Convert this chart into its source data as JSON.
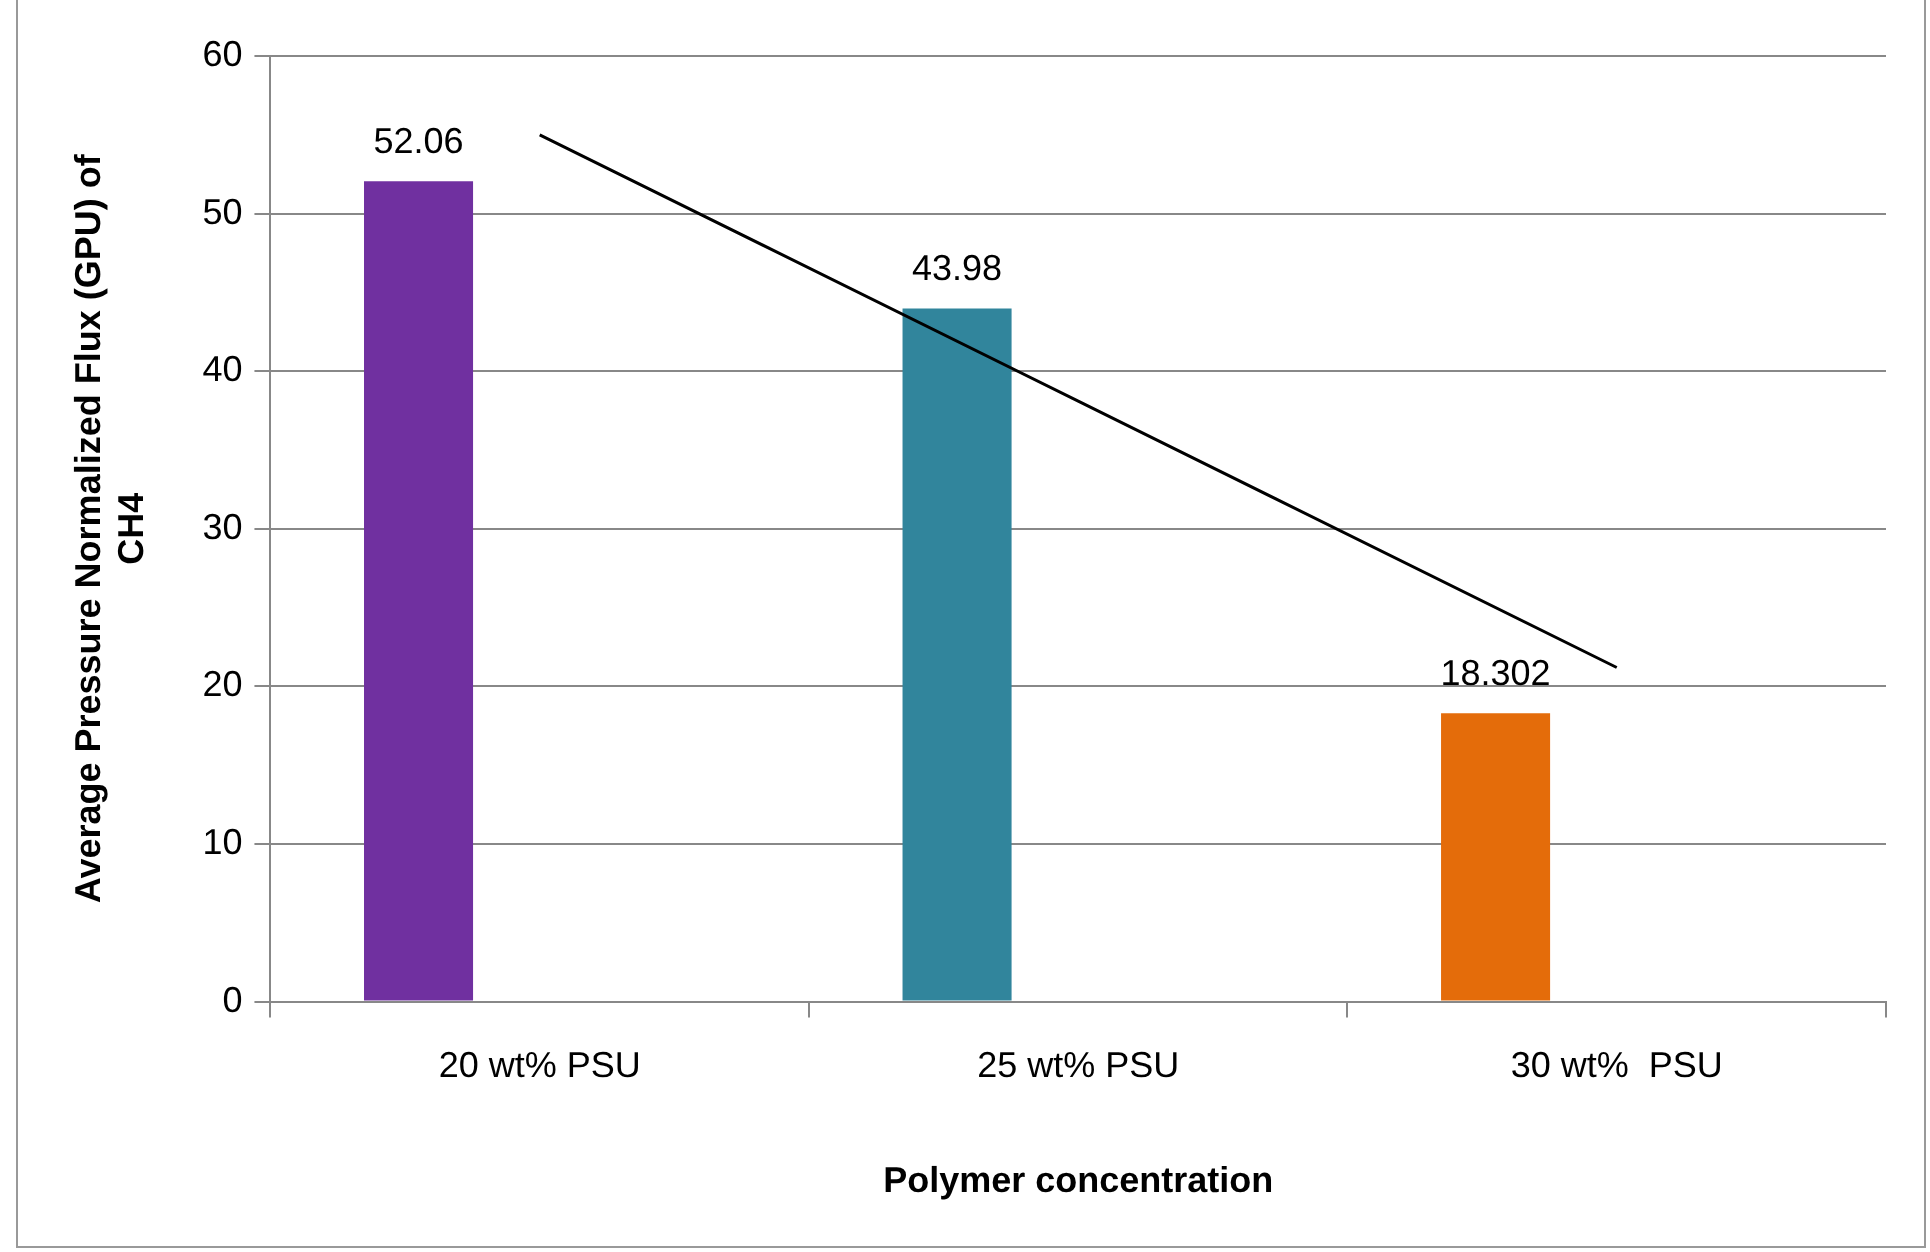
{
  "chart_data": {
    "type": "bar",
    "xlabel": "Polymer concentration",
    "ylabel": "Average Pressure Normalized Flux (GPU) of CH4",
    "categories": [
      "20 wt% PSU",
      "25 wt% PSU",
      "30 wt%  PSU"
    ],
    "series": [
      {
        "type": "bar",
        "values": [
          52.06,
          43.98,
          18.302
        ],
        "value_labels": [
          "52.06",
          "43.98",
          "18.302"
        ],
        "colors": [
          "#7030a0",
          "#31859c",
          "#e46c0a"
        ]
      },
      {
        "type": "line",
        "x": [
          "20 wt% PSU",
          "25 wt% PSU",
          "30 wt%  PSU"
        ],
        "values": [
          55.0,
          38.1,
          21.2
        ],
        "color": "#000000",
        "marker": "none"
      }
    ],
    "ylim": [
      0,
      60
    ],
    "yticks": [
      0,
      10,
      20,
      30,
      40,
      50,
      60
    ],
    "grid": "y",
    "legend": false
  }
}
